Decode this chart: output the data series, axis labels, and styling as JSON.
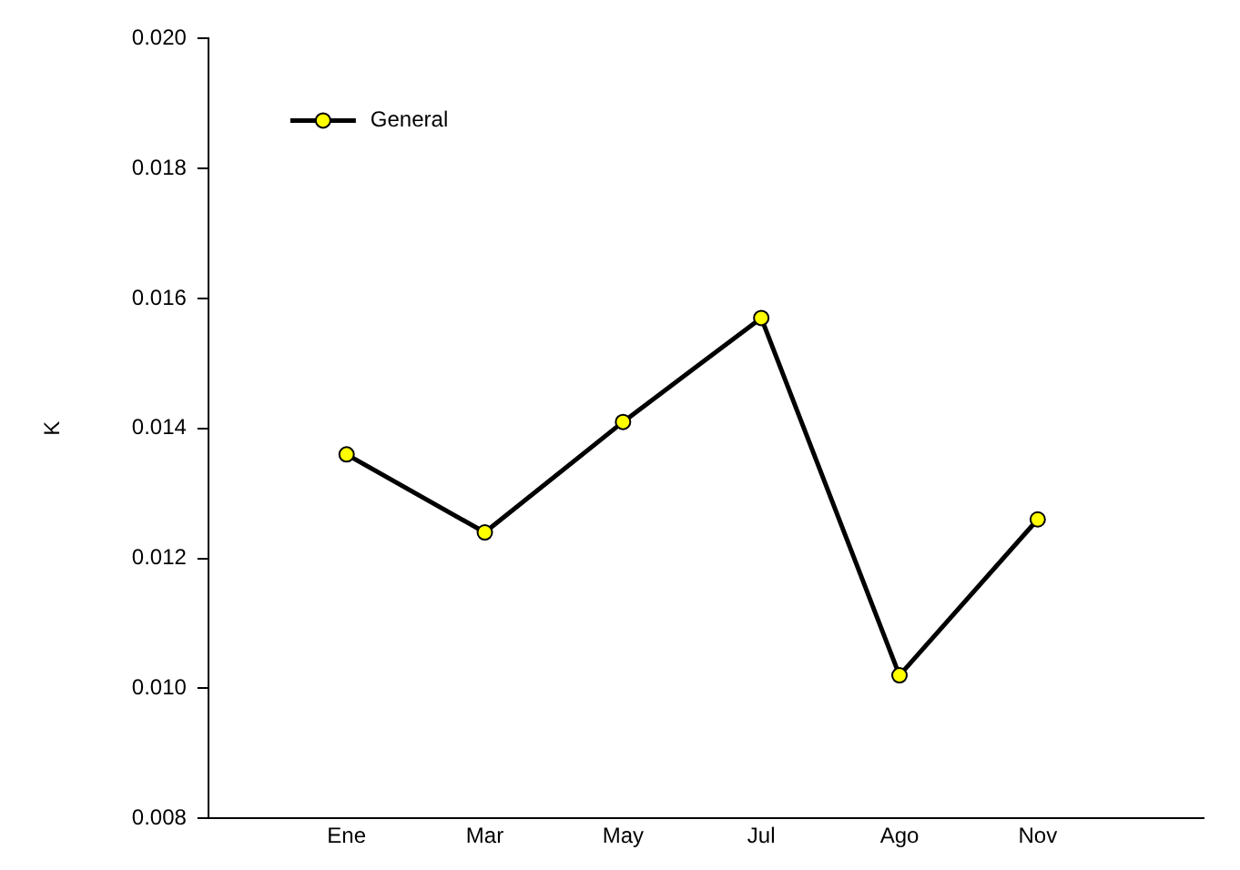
{
  "chart_data": {
    "type": "line",
    "ylabel": "K",
    "categories": [
      "Ene",
      "Mar",
      "May",
      "Jul",
      "Ago",
      "Nov"
    ],
    "series": [
      {
        "name": "General",
        "color": "#ffff00",
        "values": [
          0.0136,
          0.0124,
          0.0141,
          0.0157,
          0.0102,
          0.0126
        ]
      }
    ],
    "ylim": [
      0.008,
      0.02
    ],
    "yticks": [
      {
        "value": 0.008,
        "label": "0.008"
      },
      {
        "value": 0.01,
        "label": "0.010"
      },
      {
        "value": 0.012,
        "label": "0.012"
      },
      {
        "value": 0.014,
        "label": "0.014"
      },
      {
        "value": 0.016,
        "label": "0.016"
      },
      {
        "value": 0.018,
        "label": "0.018"
      },
      {
        "value": 0.02,
        "label": "0.020"
      }
    ],
    "grid": false,
    "legend": "top left",
    "marker": "circle",
    "line_style": "solid"
  }
}
